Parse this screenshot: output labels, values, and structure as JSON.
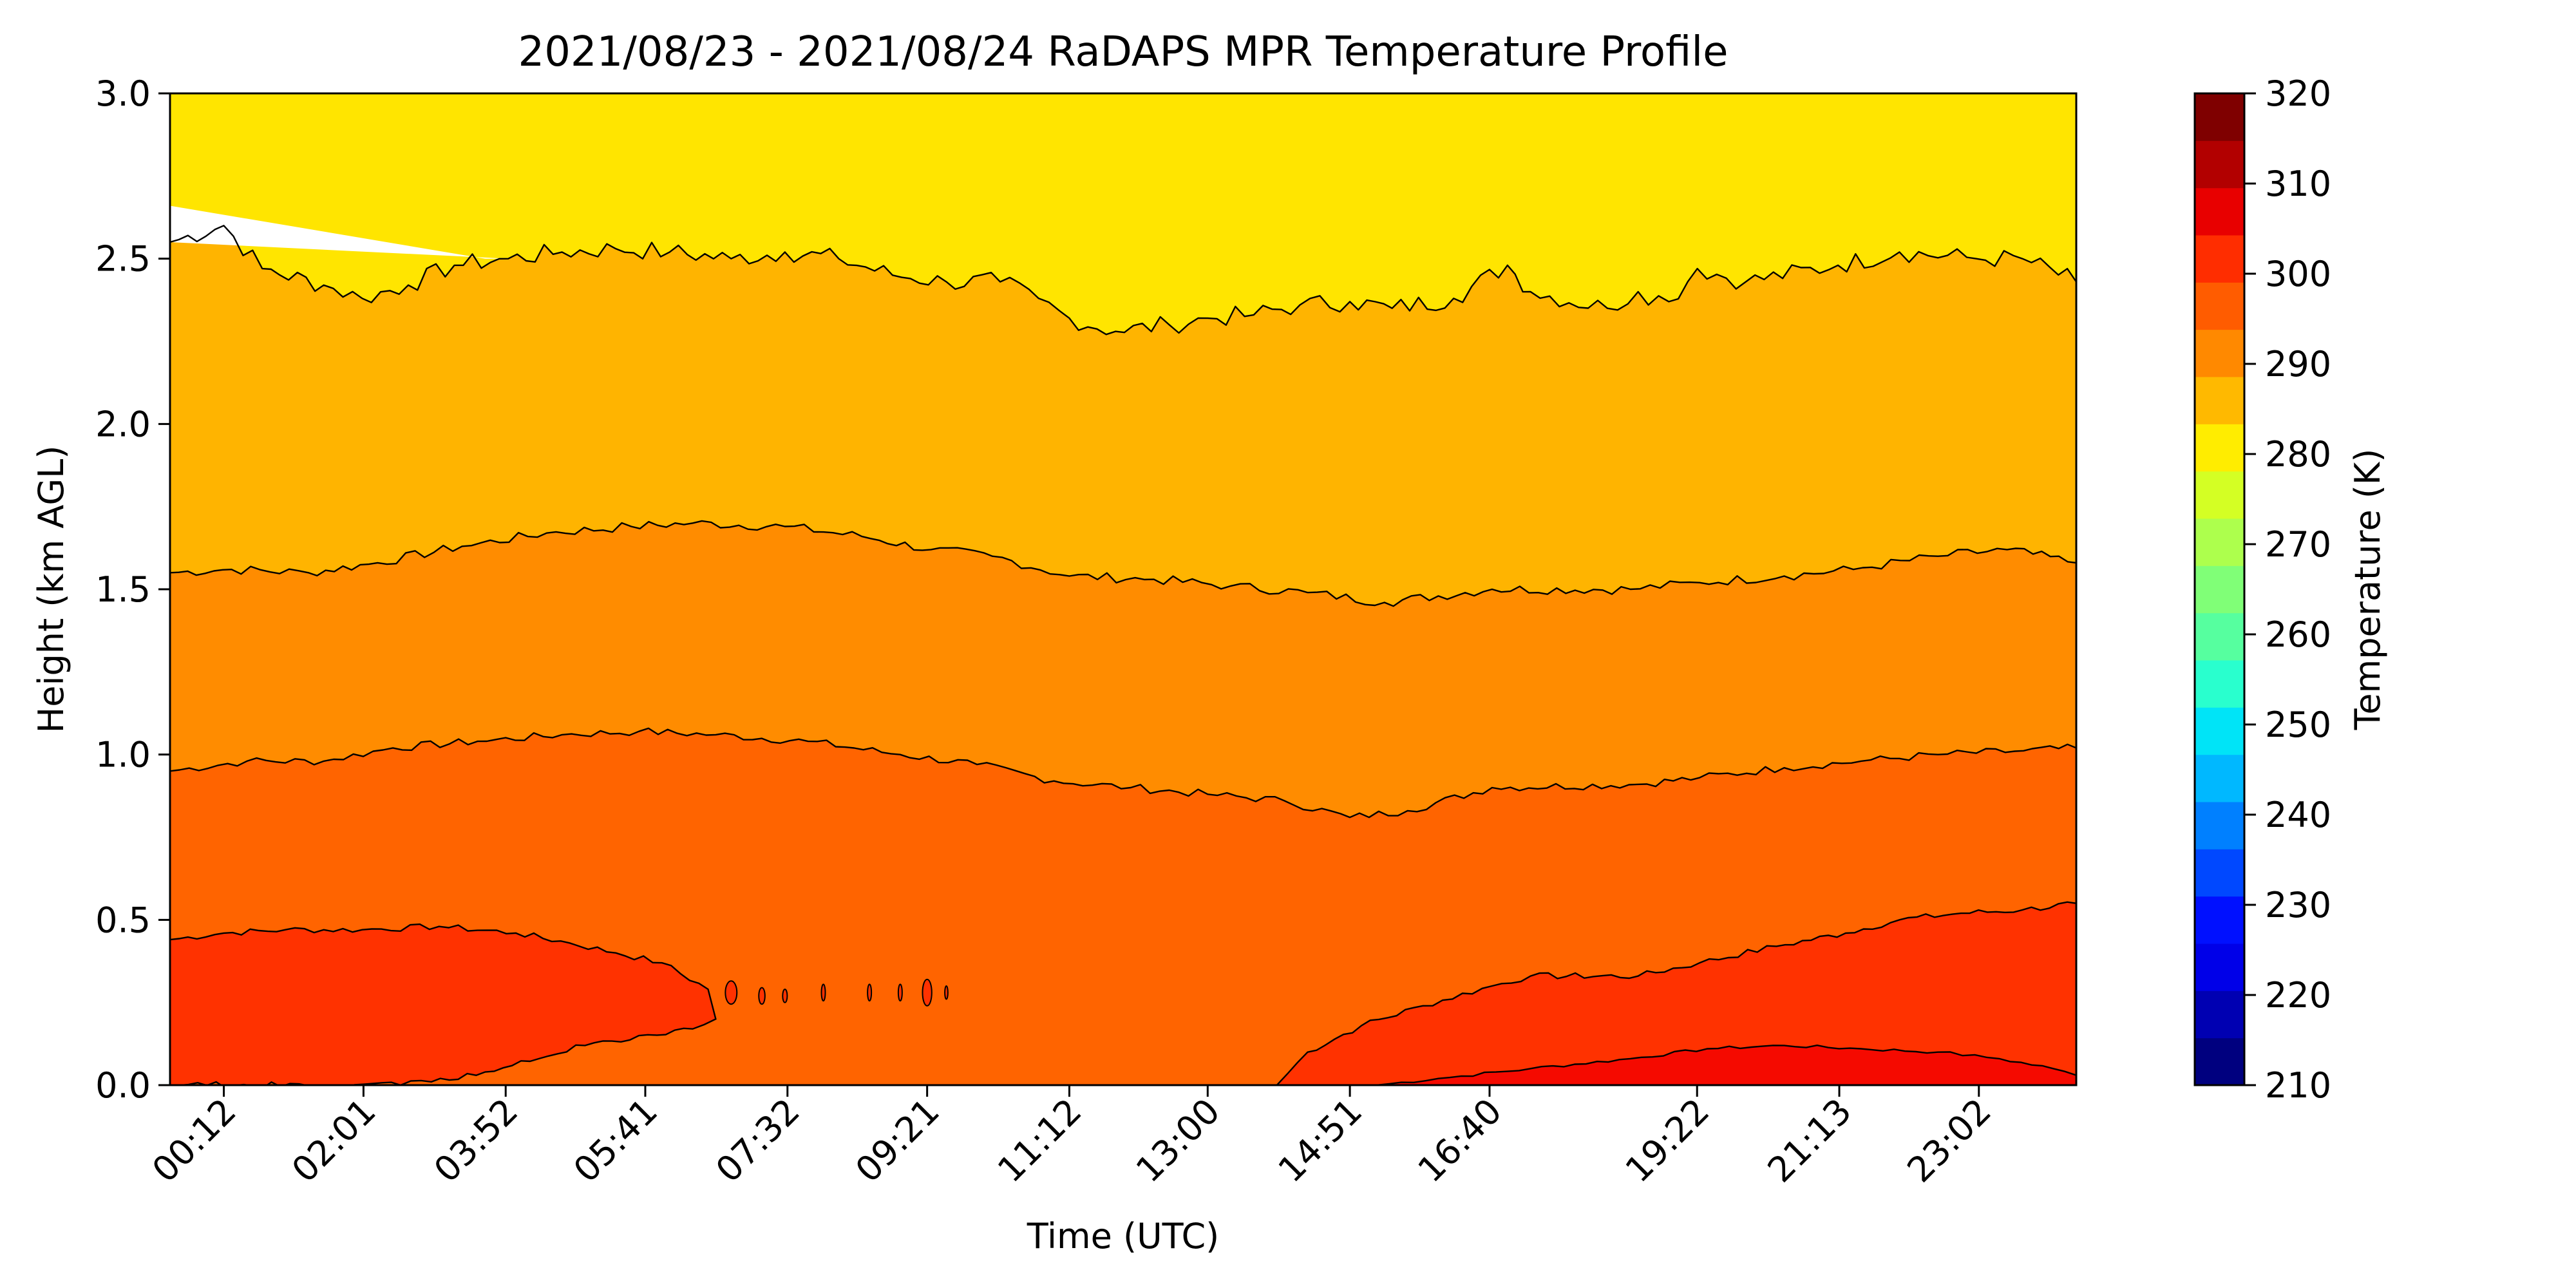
{
  "chart_data": {
    "type": "heatmap",
    "subtype": "filled-contour",
    "title": "2021/08/23 - 2021/08/24 RaDAPS MPR Temperature Profile",
    "xlabel": "Time (UTC)",
    "ylabel": "Height (km AGL)",
    "xlim_hours": [
      -0.5,
      24.3
    ],
    "ylim": [
      0,
      3.0
    ],
    "x_ticks": [
      {
        "label": "00:12",
        "hour": 0.2
      },
      {
        "label": "02:01",
        "hour": 2.017
      },
      {
        "label": "03:52",
        "hour": 3.867
      },
      {
        "label": "05:41",
        "hour": 5.683
      },
      {
        "label": "07:32",
        "hour": 7.533
      },
      {
        "label": "09:21",
        "hour": 9.35
      },
      {
        "label": "11:12",
        "hour": 11.2
      },
      {
        "label": "13:00",
        "hour": 13.0
      },
      {
        "label": "14:51",
        "hour": 14.85
      },
      {
        "label": "16:40",
        "hour": 16.667
      },
      {
        "label": "19:22",
        "hour": 19.367
      },
      {
        "label": "21:13",
        "hour": 21.217
      },
      {
        "label": "23:02",
        "hour": 23.033
      }
    ],
    "y_ticks": [
      "0.0",
      "0.5",
      "1.0",
      "1.5",
      "2.0",
      "2.5",
      "3.0"
    ],
    "y_tick_values": [
      0,
      0.5,
      1.0,
      1.5,
      2.0,
      2.5,
      3.0
    ],
    "colorbar": {
      "label": "Temperature (K)",
      "range": [
        210,
        320
      ],
      "step": 5,
      "tick_labels": [
        "210",
        "220",
        "230",
        "240",
        "250",
        "260",
        "270",
        "280",
        "290",
        "300",
        "310",
        "320"
      ],
      "tick_values": [
        210,
        220,
        230,
        240,
        250,
        260,
        270,
        280,
        290,
        300,
        310,
        320
      ],
      "colors": [
        "#00007f",
        "#0000b2",
        "#0000e8",
        "#0010ff",
        "#0048ff",
        "#0080ff",
        "#00b8ff",
        "#00e4f7",
        "#29ffce",
        "#56ff9f",
        "#80ff77",
        "#adff4d",
        "#d4ff24",
        "#ffed00",
        "#ffb900",
        "#ff8900",
        "#ff5c00",
        "#ff2d00",
        "#e80000",
        "#b20000",
        "#7f0000"
      ]
    },
    "contour_levels_K": [
      280,
      285,
      290,
      295,
      300,
      305
    ],
    "fill_colors": {
      "below_280": "#ffffff",
      "280_285": "#ffe500",
      "285_290": "#ffb400",
      "290_295": "#ff8c00",
      "295_300": "#ff6400",
      "300_305": "#ff3200",
      "305_310": "#f50a00"
    },
    "contours": [
      {
        "level_K": 285,
        "name": "285 K isotherm",
        "points": [
          [
            -0.5,
            2.55
          ],
          [
            0.2,
            2.6
          ],
          [
            0.7,
            2.47
          ],
          [
            1.5,
            2.42
          ],
          [
            2.0,
            2.38
          ],
          [
            2.6,
            2.42
          ],
          [
            3.2,
            2.48
          ],
          [
            3.9,
            2.5
          ],
          [
            4.6,
            2.52
          ],
          [
            5.3,
            2.53
          ],
          [
            6.0,
            2.52
          ],
          [
            6.8,
            2.5
          ],
          [
            7.5,
            2.52
          ],
          [
            8.2,
            2.5
          ],
          [
            8.9,
            2.45
          ],
          [
            9.6,
            2.43
          ],
          [
            10.3,
            2.43
          ],
          [
            10.8,
            2.38
          ],
          [
            11.2,
            2.32
          ],
          [
            11.8,
            2.28
          ],
          [
            12.5,
            2.3
          ],
          [
            13.0,
            2.32
          ],
          [
            13.6,
            2.33
          ],
          [
            14.2,
            2.36
          ],
          [
            14.85,
            2.37
          ],
          [
            15.4,
            2.35
          ],
          [
            16.2,
            2.38
          ],
          [
            16.9,
            2.48
          ],
          [
            17.2,
            2.4
          ],
          [
            18.2,
            2.35
          ],
          [
            18.6,
            2.4
          ],
          [
            19.0,
            2.37
          ],
          [
            19.37,
            2.47
          ],
          [
            20.0,
            2.43
          ],
          [
            21.2,
            2.48
          ],
          [
            22.0,
            2.52
          ],
          [
            23.0,
            2.5
          ],
          [
            23.6,
            2.5
          ],
          [
            24.3,
            2.43
          ]
        ]
      },
      {
        "level_K": 290,
        "name": "290 K isotherm",
        "points": [
          [
            -0.5,
            1.55
          ],
          [
            0.3,
            1.56
          ],
          [
            1.3,
            1.55
          ],
          [
            2.2,
            1.58
          ],
          [
            3.3,
            1.63
          ],
          [
            4.4,
            1.67
          ],
          [
            5.5,
            1.69
          ],
          [
            6.3,
            1.7
          ],
          [
            7.5,
            1.69
          ],
          [
            8.5,
            1.66
          ],
          [
            9.4,
            1.62
          ],
          [
            10.2,
            1.6
          ],
          [
            11.2,
            1.54
          ],
          [
            12.3,
            1.53
          ],
          [
            13.3,
            1.51
          ],
          [
            14.3,
            1.49
          ],
          [
            15.3,
            1.46
          ],
          [
            16.7,
            1.5
          ],
          [
            18.5,
            1.5
          ],
          [
            19.4,
            1.52
          ],
          [
            20.5,
            1.54
          ],
          [
            21.4,
            1.56
          ],
          [
            22.5,
            1.6
          ],
          [
            23.4,
            1.62
          ],
          [
            24.3,
            1.58
          ]
        ]
      },
      {
        "level_K": 295,
        "name": "295 K isotherm",
        "points": [
          [
            -0.5,
            0.95
          ],
          [
            0.5,
            0.98
          ],
          [
            1.5,
            0.98
          ],
          [
            2.4,
            1.02
          ],
          [
            3.5,
            1.04
          ],
          [
            4.6,
            1.06
          ],
          [
            5.6,
            1.07
          ],
          [
            6.6,
            1.06
          ],
          [
            7.8,
            1.04
          ],
          [
            9.0,
            1.0
          ],
          [
            10.0,
            0.97
          ],
          [
            11.0,
            0.92
          ],
          [
            12.0,
            0.9
          ],
          [
            13.0,
            0.88
          ],
          [
            14.0,
            0.86
          ],
          [
            14.85,
            0.81
          ],
          [
            15.6,
            0.83
          ],
          [
            16.7,
            0.9
          ],
          [
            18.6,
            0.91
          ],
          [
            19.4,
            0.93
          ],
          [
            20.5,
            0.96
          ],
          [
            21.5,
            0.98
          ],
          [
            22.5,
            1.0
          ],
          [
            23.5,
            1.01
          ],
          [
            24.3,
            1.02
          ]
        ]
      },
      {
        "level_K": 300,
        "name": "300 K isotherm (left lobe)",
        "points": [
          [
            -0.5,
            0.44
          ],
          [
            0.2,
            0.46
          ],
          [
            1.0,
            0.47
          ],
          [
            2.0,
            0.47
          ],
          [
            3.0,
            0.48
          ],
          [
            4.0,
            0.46
          ],
          [
            4.7,
            0.43
          ],
          [
            5.3,
            0.4
          ],
          [
            5.9,
            0.37
          ],
          [
            6.5,
            0.29
          ],
          [
            6.6,
            0.2
          ],
          [
            6.3,
            0.17
          ],
          [
            5.6,
            0.15
          ],
          [
            4.9,
            0.12
          ],
          [
            4.3,
            0.08
          ],
          [
            3.6,
            0.04
          ],
          [
            2.9,
            0.01
          ],
          [
            2.5,
            0.0
          ],
          [
            -0.5,
            0.0
          ]
        ]
      },
      {
        "level_K": 300,
        "name": "300 K isotherm (right lobe)",
        "points": [
          [
            13.9,
            0.0
          ],
          [
            14.3,
            0.1
          ],
          [
            15.0,
            0.18
          ],
          [
            15.8,
            0.24
          ],
          [
            16.7,
            0.3
          ],
          [
            17.2,
            0.33
          ],
          [
            18.6,
            0.33
          ],
          [
            19.4,
            0.37
          ],
          [
            20.4,
            0.42
          ],
          [
            21.3,
            0.46
          ],
          [
            22.0,
            0.5
          ],
          [
            22.8,
            0.52
          ],
          [
            23.6,
            0.53
          ],
          [
            24.3,
            0.55
          ],
          [
            24.3,
            0.0
          ]
        ]
      },
      {
        "level_K": 305,
        "name": "305 K isotherm",
        "points": [
          [
            15.2,
            0.0
          ],
          [
            16.0,
            0.02
          ],
          [
            17.2,
            0.05
          ],
          [
            18.5,
            0.08
          ],
          [
            19.5,
            0.11
          ],
          [
            20.5,
            0.12
          ],
          [
            21.5,
            0.11
          ],
          [
            22.5,
            0.1
          ],
          [
            23.3,
            0.08
          ],
          [
            24.0,
            0.05
          ],
          [
            24.3,
            0.03
          ],
          [
            24.3,
            0.0
          ]
        ]
      }
    ],
    "missing_data_region": {
      "name": "below_280 wedge",
      "points": [
        [
          -0.5,
          2.66
        ],
        [
          3.6,
          2.5
        ],
        [
          3.9,
          2.5
        ],
        [
          -0.5,
          2.55
        ]
      ]
    },
    "isolated_cells": [
      {
        "hour": 6.8,
        "height": 0.28,
        "dx_hours": 0.15,
        "dy_km": 0.07
      },
      {
        "hour": 7.2,
        "height": 0.27,
        "dx_hours": 0.08,
        "dy_km": 0.05
      },
      {
        "hour": 7.5,
        "height": 0.27,
        "dx_hours": 0.06,
        "dy_km": 0.04
      },
      {
        "hour": 8.0,
        "height": 0.28,
        "dx_hours": 0.05,
        "dy_km": 0.05
      },
      {
        "hour": 8.6,
        "height": 0.28,
        "dx_hours": 0.05,
        "dy_km": 0.05
      },
      {
        "hour": 9.0,
        "height": 0.28,
        "dx_hours": 0.05,
        "dy_km": 0.05
      },
      {
        "hour": 9.35,
        "height": 0.28,
        "dx_hours": 0.12,
        "dy_km": 0.08
      },
      {
        "hour": 9.6,
        "height": 0.28,
        "dx_hours": 0.04,
        "dy_km": 0.04
      }
    ]
  }
}
